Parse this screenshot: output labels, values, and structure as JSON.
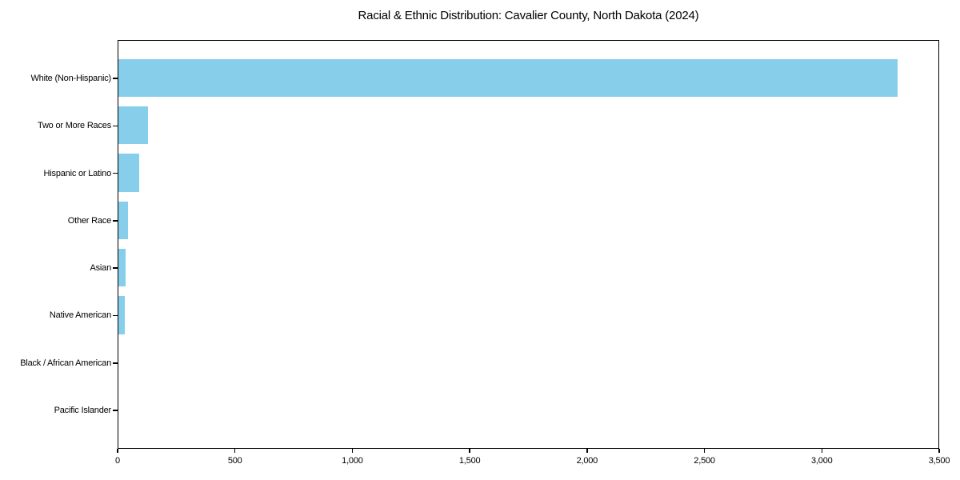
{
  "title": "Racial & Ethnic Distribution: Cavalier County, North Dakota (2024)",
  "colors": {
    "bar": "#87CEEB",
    "axis": "#000000",
    "text": "#000000",
    "background": "#ffffff"
  },
  "chart_data": {
    "type": "bar",
    "orientation": "horizontal",
    "title": "Racial & Ethnic Distribution: Cavalier County, North Dakota (2024)",
    "xlabel": "",
    "ylabel": "",
    "categories": [
      "White (Non-Hispanic)",
      "Two or More Races",
      "Hispanic or Latino",
      "Other Race",
      "Asian",
      "Native American",
      "Black / African American",
      "Pacific Islander"
    ],
    "values": [
      3330,
      125,
      90,
      40,
      32,
      28,
      0,
      0
    ],
    "xlim": [
      0,
      3500
    ],
    "x_ticks": [
      0,
      500,
      1000,
      1500,
      2000,
      2500,
      3000,
      3500
    ],
    "x_tick_labels": [
      "0",
      "500",
      "1,000",
      "1,500",
      "2,000",
      "2,500",
      "3,000",
      "3,500"
    ],
    "bar_color": "#87CEEB",
    "bar_height_fraction": 0.8,
    "grid": false,
    "legend": false
  }
}
